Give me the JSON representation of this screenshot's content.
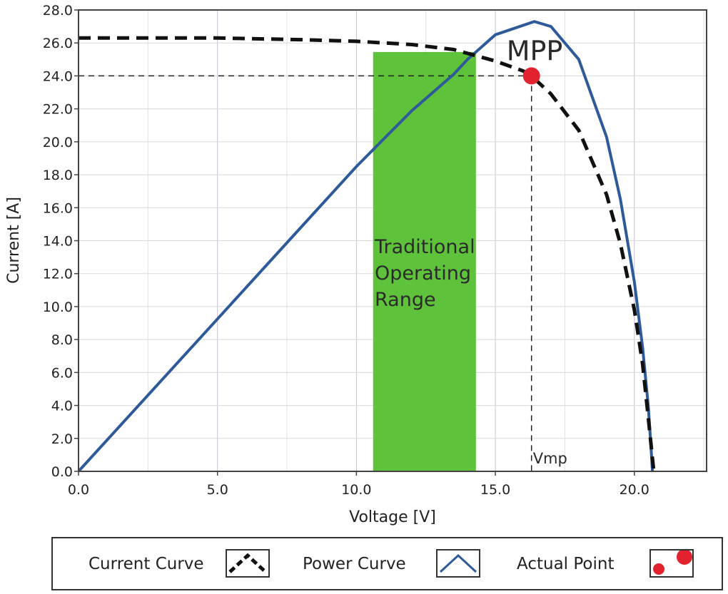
{
  "chart_data": {
    "type": "line",
    "xlabel": "Voltage [V]",
    "ylabel": "Current [A]",
    "xlim": [
      0,
      22.6
    ],
    "ylim": [
      0,
      28
    ],
    "x_ticks": [
      "0.0",
      "5.0",
      "10.0",
      "15.0",
      "20.0"
    ],
    "y_ticks": [
      "0.0",
      "2.0",
      "4.0",
      "6.0",
      "8.0",
      "10.0",
      "12.0",
      "14.0",
      "16.0",
      "18.0",
      "20.0",
      "22.0",
      "24.0",
      "26.0",
      "28.0"
    ],
    "grid": true,
    "legend_position": "bottom",
    "series": [
      {
        "name": "Current Curve",
        "style": "dashed",
        "color": "#111111",
        "points": [
          [
            0,
            26.3
          ],
          [
            5,
            26.3
          ],
          [
            8,
            26.2
          ],
          [
            10,
            26.1
          ],
          [
            12,
            25.9
          ],
          [
            13.5,
            25.6
          ],
          [
            15,
            24.9
          ],
          [
            16,
            24.3
          ],
          [
            16.3,
            24.0
          ],
          [
            17,
            22.9
          ],
          [
            18,
            20.7
          ],
          [
            19,
            16.8
          ],
          [
            19.5,
            13.8
          ],
          [
            20,
            9.8
          ],
          [
            20.3,
            6.5
          ],
          [
            20.5,
            3.3
          ],
          [
            20.7,
            0
          ]
        ]
      },
      {
        "name": "Power Curve",
        "style": "solid",
        "color": "#2e5a99",
        "points": [
          [
            0,
            0
          ],
          [
            5,
            9.25
          ],
          [
            8,
            14.8
          ],
          [
            10,
            18.5
          ],
          [
            12,
            21.9
          ],
          [
            13.5,
            24.1
          ],
          [
            14,
            25.0
          ],
          [
            15,
            26.5
          ],
          [
            16.4,
            27.3
          ],
          [
            17,
            27.0
          ],
          [
            18,
            25.0
          ],
          [
            19,
            20.3
          ],
          [
            19.5,
            16.5
          ],
          [
            20,
            11.5
          ],
          [
            20.3,
            7.5
          ],
          [
            20.5,
            4.0
          ],
          [
            20.6,
            1.5
          ],
          [
            20.65,
            0
          ]
        ]
      }
    ],
    "points": [
      {
        "name": "Actual Point",
        "x": 16.3,
        "y": 24.0,
        "color": "#e2232f"
      }
    ],
    "reference_lines": {
      "mpp_current": 24.0,
      "vmp_voltage": 16.3
    },
    "shaded_region": {
      "x_start": 10.6,
      "x_end": 14.3,
      "color": "#5ec23a"
    },
    "annotations": {
      "mpp": "MPP",
      "vmp": "Vmp",
      "range_lines": [
        "Traditional",
        "Operating",
        "Range"
      ]
    }
  },
  "legend": {
    "current_label": "Current Curve",
    "power_label": "Power Curve",
    "actual_label": "Actual Point"
  }
}
